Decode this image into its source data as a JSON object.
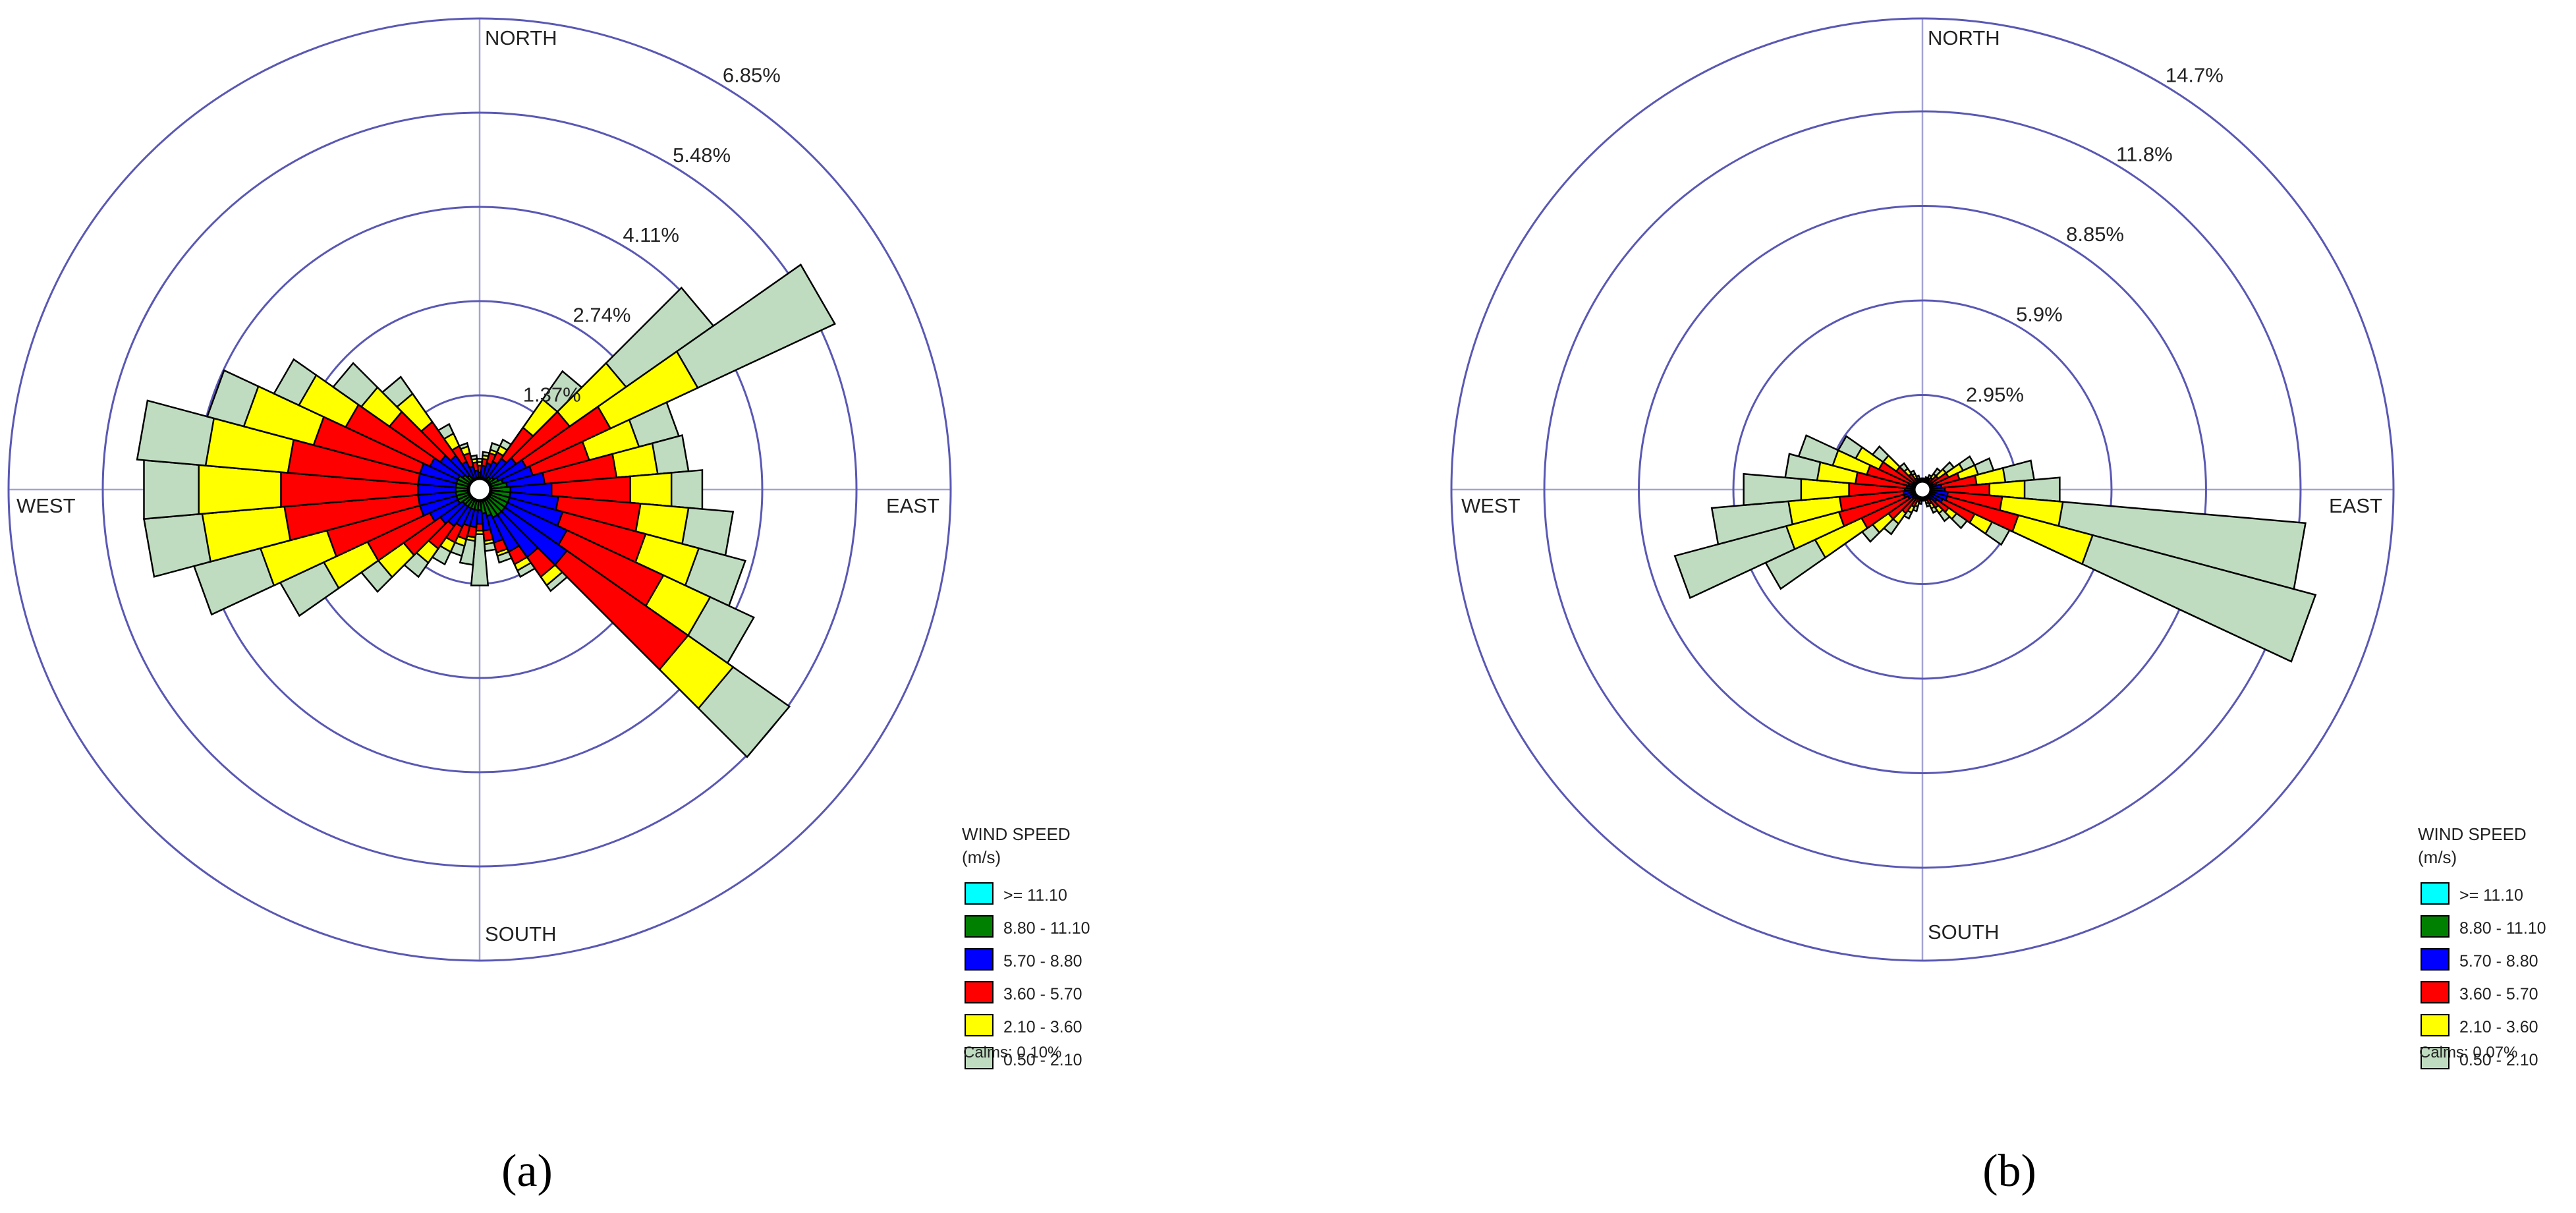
{
  "chart_data": [
    {
      "type": "wind-rose",
      "panel_label": "(a)",
      "direction_labels": {
        "north": "NORTH",
        "south": "SOUTH",
        "east": "EAST",
        "west": "WEST"
      },
      "rings": [
        {
          "value": 1.37,
          "label": "1.37%"
        },
        {
          "value": 2.74,
          "label": "2.74%"
        },
        {
          "value": 4.11,
          "label": "4.11%"
        },
        {
          "value": 5.48,
          "label": "5.48%"
        },
        {
          "value": 6.85,
          "label": "6.85%"
        }
      ],
      "rmax": 6.85,
      "sectors": 36,
      "sector_width_deg": 10,
      "cumulative_percent_by_direction": [
        {
          "dir": 0,
          "bins": [
            0.02,
            0.1,
            0.25,
            0.35,
            0.4,
            0.45
          ]
        },
        {
          "dir": 10,
          "bins": [
            0.02,
            0.15,
            0.35,
            0.45,
            0.5,
            0.55
          ]
        },
        {
          "dir": 20,
          "bins": [
            0.02,
            0.18,
            0.4,
            0.55,
            0.6,
            0.7
          ]
        },
        {
          "dir": 30,
          "bins": [
            0.02,
            0.2,
            0.45,
            0.6,
            0.7,
            0.8
          ]
        },
        {
          "dir": 40,
          "bins": [
            0.02,
            0.22,
            0.55,
            1.1,
            1.6,
            2.1
          ]
        },
        {
          "dir": 50,
          "bins": [
            0.02,
            0.25,
            0.65,
            1.6,
            2.6,
            4.15
          ]
        },
        {
          "dir": 60,
          "bins": [
            0.02,
            0.3,
            0.75,
            2.1,
            3.5,
            5.7
          ]
        },
        {
          "dir": 70,
          "bins": [
            0.02,
            0.35,
            0.8,
            1.65,
            2.4,
            3.0
          ]
        },
        {
          "dir": 80,
          "bins": [
            0.02,
            0.4,
            0.95,
            2.0,
            2.6,
            3.05
          ]
        },
        {
          "dir": 90,
          "bins": [
            0.02,
            0.45,
            1.05,
            2.2,
            2.8,
            3.25
          ]
        },
        {
          "dir": 100,
          "bins": [
            0.02,
            0.45,
            1.15,
            2.35,
            3.05,
            3.7
          ]
        },
        {
          "dir": 110,
          "bins": [
            0.02,
            0.45,
            1.25,
            2.5,
            3.3,
            4.0
          ]
        },
        {
          "dir": 120,
          "bins": [
            0.02,
            0.45,
            1.4,
            2.95,
            3.7,
            4.4
          ]
        },
        {
          "dir": 130,
          "bins": [
            0.02,
            0.45,
            1.55,
            3.7,
            4.5,
            5.5
          ]
        },
        {
          "dir": 140,
          "bins": [
            0.02,
            0.45,
            1.2,
            1.55,
            1.7,
            1.8
          ]
        },
        {
          "dir": 150,
          "bins": [
            0.02,
            0.45,
            1.0,
            1.2,
            1.3,
            1.4
          ]
        },
        {
          "dir": 160,
          "bins": [
            0.02,
            0.4,
            0.8,
            0.95,
            1.0,
            1.1
          ]
        },
        {
          "dir": 170,
          "bins": [
            0.02,
            0.35,
            0.6,
            0.75,
            0.8,
            0.9
          ]
        },
        {
          "dir": 180,
          "bins": [
            0.02,
            0.3,
            0.5,
            0.6,
            0.65,
            1.4
          ]
        },
        {
          "dir": 190,
          "bins": [
            0.02,
            0.3,
            0.55,
            0.7,
            0.75,
            1.1
          ]
        },
        {
          "dir": 200,
          "bins": [
            0.02,
            0.3,
            0.55,
            0.75,
            0.85,
            1.0
          ]
        },
        {
          "dir": 210,
          "bins": [
            0.02,
            0.3,
            0.6,
            0.85,
            1.0,
            1.2
          ]
        },
        {
          "dir": 220,
          "bins": [
            0.02,
            0.3,
            0.65,
            1.05,
            1.3,
            1.55
          ]
        },
        {
          "dir": 230,
          "bins": [
            0.02,
            0.3,
            0.7,
            1.35,
            1.8,
            2.1
          ]
        },
        {
          "dir": 240,
          "bins": [
            0.02,
            0.35,
            0.8,
            1.8,
            2.5,
            3.2
          ]
        },
        {
          "dir": 250,
          "bins": [
            0.02,
            0.35,
            0.9,
            2.3,
            3.3,
            4.3
          ]
        },
        {
          "dir": 260,
          "bins": [
            0.02,
            0.35,
            0.9,
            2.85,
            4.05,
            4.9
          ]
        },
        {
          "dir": 270,
          "bins": [
            0.02,
            0.35,
            0.9,
            2.9,
            4.1,
            4.9
          ]
        },
        {
          "dir": 280,
          "bins": [
            0.02,
            0.35,
            0.9,
            2.8,
            4.0,
            5.0
          ]
        },
        {
          "dir": 290,
          "bins": [
            0.02,
            0.35,
            0.9,
            2.5,
            3.55,
            4.1
          ]
        },
        {
          "dir": 300,
          "bins": [
            0.02,
            0.35,
            0.8,
            2.15,
            2.9,
            3.3
          ]
        },
        {
          "dir": 310,
          "bins": [
            0.02,
            0.3,
            0.7,
            1.6,
            2.1,
            2.6
          ]
        },
        {
          "dir": 320,
          "bins": [
            0.02,
            0.25,
            0.6,
            1.2,
            1.7,
            2.0
          ]
        },
        {
          "dir": 330,
          "bins": [
            0.02,
            0.2,
            0.45,
            0.7,
            0.9,
            1.05
          ]
        },
        {
          "dir": 340,
          "bins": [
            0.02,
            0.15,
            0.35,
            0.55,
            0.65,
            0.7
          ]
        },
        {
          "dir": 350,
          "bins": [
            0.02,
            0.12,
            0.28,
            0.4,
            0.45,
            0.5
          ]
        }
      ],
      "legend": {
        "title": "WIND SPEED",
        "unit": "(m/s)",
        "bins": [
          {
            "label": ">= 11.10",
            "color": "#00ffff"
          },
          {
            "label": "8.80 - 11.10",
            "color": "#008000"
          },
          {
            "label": "5.70 - 8.80",
            "color": "#0000ff"
          },
          {
            "label": "3.60 - 5.70",
            "color": "#ff0000"
          },
          {
            "label": "2.10 - 3.60",
            "color": "#ffff00"
          },
          {
            "label": "0.50 - 2.10",
            "color": "#c0dcc0"
          }
        ],
        "calms": "Calms: 0.10%"
      }
    },
    {
      "type": "wind-rose",
      "panel_label": "(b)",
      "direction_labels": {
        "north": "NORTH",
        "south": "SOUTH",
        "east": "EAST",
        "west": "WEST"
      },
      "rings": [
        {
          "value": 2.95,
          "label": "2.95%"
        },
        {
          "value": 5.9,
          "label": "5.9%"
        },
        {
          "value": 8.85,
          "label": "8.85%"
        },
        {
          "value": 11.8,
          "label": "11.8%"
        },
        {
          "value": 14.7,
          "label": "14.7%"
        }
      ],
      "rmax": 14.7,
      "sectors": 36,
      "sector_width_deg": 10,
      "cumulative_percent_by_direction": [
        {
          "dir": 0,
          "bins": [
            0.02,
            0.05,
            0.15,
            0.25,
            0.3,
            0.35
          ]
        },
        {
          "dir": 10,
          "bins": [
            0.02,
            0.05,
            0.15,
            0.25,
            0.3,
            0.35
          ]
        },
        {
          "dir": 20,
          "bins": [
            0.02,
            0.05,
            0.18,
            0.3,
            0.35,
            0.4
          ]
        },
        {
          "dir": 30,
          "bins": [
            0.02,
            0.05,
            0.2,
            0.35,
            0.4,
            0.5
          ]
        },
        {
          "dir": 40,
          "bins": [
            0.02,
            0.06,
            0.25,
            0.45,
            0.6,
            0.8
          ]
        },
        {
          "dir": 50,
          "bins": [
            0.02,
            0.06,
            0.3,
            0.6,
            0.9,
            1.2
          ]
        },
        {
          "dir": 60,
          "bins": [
            0.02,
            0.06,
            0.35,
            0.9,
            1.4,
            1.8
          ]
        },
        {
          "dir": 70,
          "bins": [
            0.02,
            0.06,
            0.45,
            1.2,
            1.8,
            2.3
          ]
        },
        {
          "dir": 80,
          "bins": [
            0.02,
            0.06,
            0.6,
            1.7,
            2.6,
            3.5
          ]
        },
        {
          "dir": 90,
          "bins": [
            0.02,
            0.06,
            0.7,
            2.1,
            3.2,
            4.3
          ]
        },
        {
          "dir": 100,
          "bins": [
            0.02,
            0.06,
            0.8,
            2.5,
            4.4,
            12.0
          ]
        },
        {
          "dir": 110,
          "bins": [
            0.02,
            0.06,
            0.8,
            3.1,
            5.5,
            12.7
          ]
        },
        {
          "dir": 120,
          "bins": [
            0.02,
            0.06,
            0.7,
            1.8,
            2.4,
            3.0
          ]
        },
        {
          "dir": 130,
          "bins": [
            0.02,
            0.06,
            0.55,
            1.0,
            1.3,
            1.7
          ]
        },
        {
          "dir": 140,
          "bins": [
            0.02,
            0.05,
            0.4,
            0.7,
            0.9,
            1.2
          ]
        },
        {
          "dir": 150,
          "bins": [
            0.02,
            0.05,
            0.3,
            0.5,
            0.65,
            0.8
          ]
        },
        {
          "dir": 160,
          "bins": [
            0.02,
            0.05,
            0.2,
            0.35,
            0.45,
            0.55
          ]
        },
        {
          "dir": 170,
          "bins": [
            0.02,
            0.05,
            0.15,
            0.25,
            0.3,
            0.35
          ]
        },
        {
          "dir": 180,
          "bins": [
            0.02,
            0.05,
            0.15,
            0.25,
            0.3,
            0.35
          ]
        },
        {
          "dir": 190,
          "bins": [
            0.02,
            0.05,
            0.15,
            0.3,
            0.35,
            0.45
          ]
        },
        {
          "dir": 200,
          "bins": [
            0.02,
            0.05,
            0.2,
            0.4,
            0.55,
            0.7
          ]
        },
        {
          "dir": 210,
          "bins": [
            0.02,
            0.05,
            0.3,
            0.6,
            0.8,
            1.0
          ]
        },
        {
          "dir": 220,
          "bins": [
            0.02,
            0.05,
            0.35,
            0.9,
            1.3,
            1.7
          ]
        },
        {
          "dir": 230,
          "bins": [
            0.02,
            0.06,
            0.4,
            1.3,
            1.9,
            2.3
          ]
        },
        {
          "dir": 240,
          "bins": [
            0.02,
            0.06,
            0.5,
            2.1,
            3.7,
            5.4
          ]
        },
        {
          "dir": 250,
          "bins": [
            0.02,
            0.06,
            0.6,
            2.7,
            4.4,
            8.0
          ]
        },
        {
          "dir": 260,
          "bins": [
            0.02,
            0.06,
            0.6,
            2.6,
            4.2,
            6.6
          ]
        },
        {
          "dir": 270,
          "bins": [
            0.02,
            0.06,
            0.55,
            2.3,
            3.8,
            5.6
          ]
        },
        {
          "dir": 280,
          "bins": [
            0.02,
            0.06,
            0.5,
            2.1,
            3.3,
            4.3
          ]
        },
        {
          "dir": 290,
          "bins": [
            0.02,
            0.06,
            0.45,
            1.8,
            2.9,
            4.0
          ]
        },
        {
          "dir": 300,
          "bins": [
            0.02,
            0.06,
            0.4,
            1.5,
            2.3,
            2.9
          ]
        },
        {
          "dir": 310,
          "bins": [
            0.02,
            0.05,
            0.35,
            1.0,
            1.5,
            1.9
          ]
        },
        {
          "dir": 320,
          "bins": [
            0.02,
            0.05,
            0.25,
            0.6,
            0.8,
            1.0
          ]
        },
        {
          "dir": 330,
          "bins": [
            0.02,
            0.05,
            0.2,
            0.4,
            0.55,
            0.65
          ]
        },
        {
          "dir": 340,
          "bins": [
            0.02,
            0.05,
            0.15,
            0.3,
            0.35,
            0.45
          ]
        },
        {
          "dir": 350,
          "bins": [
            0.02,
            0.05,
            0.15,
            0.25,
            0.3,
            0.35
          ]
        }
      ],
      "legend": {
        "title": "WIND SPEED",
        "unit": "(m/s)",
        "bins": [
          {
            "label": ">= 11.10",
            "color": "#00ffff"
          },
          {
            "label": "8.80 - 11.10",
            "color": "#008000"
          },
          {
            "label": "5.70 - 8.80",
            "color": "#0000ff"
          },
          {
            "label": "3.60 - 5.70",
            "color": "#ff0000"
          },
          {
            "label": "2.10 - 3.60",
            "color": "#ffff00"
          },
          {
            "label": "0.50 - 2.10",
            "color": "#c0dcc0"
          }
        ],
        "calms": "Calms: 0.07%"
      }
    }
  ]
}
